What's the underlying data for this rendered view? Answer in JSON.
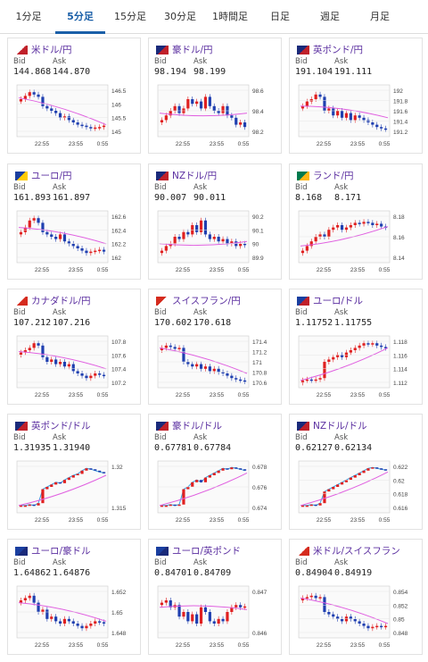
{
  "tabs": [
    {
      "label": "1分足",
      "active": false
    },
    {
      "label": "5分足",
      "active": true
    },
    {
      "label": "15分足",
      "active": false
    },
    {
      "label": "30分足",
      "active": false
    },
    {
      "label": "1時間足",
      "active": false
    },
    {
      "label": "日足",
      "active": false
    },
    {
      "label": "週足",
      "active": false
    },
    {
      "label": "月足",
      "active": false
    }
  ],
  "labels": {
    "bid": "Bid",
    "ask": "Ask"
  },
  "colors": {
    "up": "#e02020",
    "down": "#1f3fb0",
    "ma": "#e060e0",
    "tab_active": "#1a5fa8",
    "pair_text": "#5b2fa0"
  },
  "cards": [
    {
      "pair": "米ドル/円",
      "flag": [
        "#ffffff",
        "#c0202a"
      ],
      "bid": "144.868",
      "ask": "144.870",
      "chart_data": {
        "type": "candlestick",
        "x_ticks": [
          "22:55",
          "23:55",
          "0:55"
        ],
        "y_ticks": [
          "146.5",
          "146",
          "145.5",
          "145"
        ],
        "ylim": [
          144.7,
          146.7
        ],
        "shape": [
          0.75,
          0.82,
          0.9,
          0.85,
          0.8,
          0.6,
          0.55,
          0.5,
          0.45,
          0.35,
          0.38,
          0.3,
          0.25,
          0.2,
          0.18,
          0.15,
          0.12,
          0.14,
          0.15,
          0.18
        ],
        "ma": [
          0.78,
          0.2
        ]
      }
    },
    {
      "pair": "豪ドル/円",
      "flag": [
        "#1a2a7a",
        "#c0202a"
      ],
      "bid": "98.194",
      "ask": "98.199",
      "chart_data": {
        "type": "candlestick",
        "x_ticks": [
          "22:55",
          "23:55",
          "0:55"
        ],
        "y_ticks": [
          "98.6",
          "98.4",
          "98.2"
        ],
        "ylim": [
          98.15,
          98.7
        ],
        "shape": [
          0.3,
          0.4,
          0.5,
          0.6,
          0.45,
          0.55,
          0.75,
          0.65,
          0.7,
          0.55,
          0.8,
          0.6,
          0.5,
          0.45,
          0.6,
          0.4,
          0.35,
          0.2,
          0.25,
          0.15
        ],
        "ma": [
          0.45,
          0.45
        ]
      }
    },
    {
      "pair": "英ポンド/円",
      "flag": [
        "#1a2a7a",
        "#c0202a"
      ],
      "bid": "191.104",
      "ask": "191.111",
      "chart_data": {
        "type": "candlestick",
        "x_ticks": [
          "22:55",
          "23:55",
          "0:55"
        ],
        "y_ticks": [
          "192",
          "191.8",
          "191.6",
          "191.4",
          "191.2"
        ],
        "ylim": [
          191.05,
          192.1
        ],
        "shape": [
          0.6,
          0.7,
          0.75,
          0.85,
          0.8,
          0.5,
          0.55,
          0.4,
          0.5,
          0.35,
          0.45,
          0.3,
          0.4,
          0.35,
          0.3,
          0.25,
          0.2,
          0.15,
          0.12,
          0.1
        ],
        "ma": [
          0.6,
          0.35
        ]
      }
    },
    {
      "pair": "ユーロ/円",
      "flag": [
        "#1a3fa0",
        "#ffcc00"
      ],
      "bid": "161.893",
      "ask": "161.897",
      "chart_data": {
        "type": "candlestick",
        "x_ticks": [
          "22:55",
          "23:55",
          "0:55"
        ],
        "y_ticks": [
          "162.6",
          "162.4",
          "162.2",
          "162"
        ],
        "ylim": [
          161.85,
          162.7
        ],
        "shape": [
          0.6,
          0.7,
          0.85,
          0.9,
          0.8,
          0.6,
          0.55,
          0.5,
          0.45,
          0.55,
          0.4,
          0.35,
          0.3,
          0.25,
          0.2,
          0.15,
          0.18,
          0.2,
          0.22,
          0.18
        ],
        "ma": [
          0.7,
          0.35
        ]
      }
    },
    {
      "pair": "NZドル/円",
      "flag": [
        "#1a2a7a",
        "#c0202a"
      ],
      "bid": "90.007",
      "ask": "90.011",
      "chart_data": {
        "type": "candlestick",
        "x_ticks": [
          "22:55",
          "23:55",
          "0:55"
        ],
        "y_ticks": [
          "90.2",
          "90.1",
          "90",
          "89.9"
        ],
        "ylim": [
          89.85,
          90.25
        ],
        "shape": [
          0.2,
          0.3,
          0.35,
          0.5,
          0.45,
          0.6,
          0.55,
          0.75,
          0.6,
          0.85,
          0.55,
          0.45,
          0.5,
          0.4,
          0.45,
          0.35,
          0.4,
          0.3,
          0.35,
          0.32
        ],
        "ma": [
          0.35,
          0.4
        ]
      }
    },
    {
      "pair": "ランド/円",
      "flag": [
        "#007a4d",
        "#ffb612"
      ],
      "bid": "8.168",
      "ask": "8.171",
      "chart_data": {
        "type": "candlestick",
        "x_ticks": [
          "22:55",
          "23:55",
          "0:55"
        ],
        "y_ticks": [
          "8.18",
          "8.16",
          "8.14"
        ],
        "ylim": [
          8.13,
          8.19
        ],
        "shape": [
          0.2,
          0.3,
          0.4,
          0.5,
          0.55,
          0.5,
          0.65,
          0.7,
          0.75,
          0.65,
          0.7,
          0.75,
          0.8,
          0.78,
          0.82,
          0.8,
          0.75,
          0.78,
          0.72,
          0.7
        ],
        "ma": [
          0.3,
          0.72
        ]
      }
    },
    {
      "pair": "カナダドル/円",
      "flag": [
        "#ffffff",
        "#d52b1e"
      ],
      "bid": "107.212",
      "ask": "107.216",
      "chart_data": {
        "type": "candlestick",
        "x_ticks": [
          "22:55",
          "23:55",
          "0:55"
        ],
        "y_ticks": [
          "107.8",
          "107.6",
          "107.4",
          "107.2"
        ],
        "ylim": [
          107.1,
          107.9
        ],
        "shape": [
          0.7,
          0.75,
          0.8,
          0.9,
          0.85,
          0.6,
          0.5,
          0.55,
          0.45,
          0.5,
          0.4,
          0.45,
          0.3,
          0.25,
          0.2,
          0.15,
          0.2,
          0.25,
          0.22,
          0.2
        ],
        "ma": [
          0.72,
          0.35
        ]
      }
    },
    {
      "pair": "スイスフラン/円",
      "flag": [
        "#d52b1e",
        "#ffffff"
      ],
      "bid": "170.602",
      "ask": "170.618",
      "chart_data": {
        "type": "candlestick",
        "x_ticks": [
          "22:55",
          "23:55",
          "0:55"
        ],
        "y_ticks": [
          "171.4",
          "171.2",
          "171",
          "170.8",
          "170.6"
        ],
        "ylim": [
          170.55,
          171.5
        ],
        "shape": [
          0.8,
          0.85,
          0.82,
          0.78,
          0.8,
          0.5,
          0.45,
          0.4,
          0.45,
          0.35,
          0.4,
          0.3,
          0.35,
          0.28,
          0.25,
          0.2,
          0.15,
          0.12,
          0.1,
          0.08
        ],
        "ma": [
          0.8,
          0.25
        ]
      }
    },
    {
      "pair": "ユーロ/ドル",
      "flag": [
        "#1a3fa0",
        "#c0202a"
      ],
      "bid": "1.11752",
      "ask": "1.11755",
      "chart_data": {
        "type": "candlestick",
        "x_ticks": [
          "22:55",
          "23:55",
          "0:55"
        ],
        "y_ticks": [
          "1.118",
          "1.116",
          "1.114",
          "1.112"
        ],
        "ylim": [
          1.111,
          1.119
        ],
        "shape": [
          0.1,
          0.12,
          0.1,
          0.12,
          0.15,
          0.5,
          0.55,
          0.6,
          0.65,
          0.6,
          0.7,
          0.75,
          0.8,
          0.85,
          0.9,
          0.88,
          0.9,
          0.85,
          0.82,
          0.8
        ],
        "ma": [
          0.1,
          0.8
        ]
      }
    },
    {
      "pair": "英ポンド/ドル",
      "flag": [
        "#1a2a7a",
        "#c0202a"
      ],
      "bid": "1.31935",
      "ask": "1.31940",
      "chart_data": {
        "type": "line",
        "x_ticks": [
          "22:55",
          "23:55",
          "0:55"
        ],
        "y_ticks": [
          "1.32",
          "1.315"
        ],
        "ylim": [
          1.311,
          1.3215
        ],
        "shape": [
          0.1,
          0.1,
          0.12,
          0.1,
          0.15,
          0.45,
          0.5,
          0.55,
          0.6,
          0.58,
          0.65,
          0.7,
          0.75,
          0.78,
          0.85,
          0.9,
          0.88,
          0.85,
          0.82,
          0.8
        ],
        "ma": [
          0.1,
          0.75
        ]
      }
    },
    {
      "pair": "豪ドル/ドル",
      "flag": [
        "#1a2a7a",
        "#c0202a"
      ],
      "bid": "0.67781",
      "ask": "0.67784",
      "chart_data": {
        "type": "line",
        "x_ticks": [
          "22:55",
          "23:55",
          "0:55"
        ],
        "y_ticks": [
          "0.678",
          "0.676",
          "0.674"
        ],
        "ylim": [
          0.6725,
          0.679
        ],
        "shape": [
          0.1,
          0.1,
          0.12,
          0.1,
          0.12,
          0.45,
          0.5,
          0.6,
          0.65,
          0.6,
          0.7,
          0.75,
          0.8,
          0.85,
          0.9,
          0.88,
          0.92,
          0.9,
          0.88,
          0.85
        ],
        "ma": [
          0.1,
          0.8
        ]
      }
    },
    {
      "pair": "NZドル/ドル",
      "flag": [
        "#1a2a7a",
        "#c0202a"
      ],
      "bid": "0.62127",
      "ask": "0.62134",
      "chart_data": {
        "type": "line",
        "x_ticks": [
          "22:55",
          "23:55",
          "0:55"
        ],
        "y_ticks": [
          "0.622",
          "0.62",
          "0.618",
          "0.616"
        ],
        "ylim": [
          0.615,
          0.6225
        ],
        "shape": [
          0.1,
          0.1,
          0.12,
          0.1,
          0.15,
          0.4,
          0.45,
          0.5,
          0.55,
          0.6,
          0.65,
          0.7,
          0.75,
          0.8,
          0.85,
          0.9,
          0.92,
          0.9,
          0.88,
          0.86
        ],
        "ma": [
          0.1,
          0.82
        ]
      }
    },
    {
      "pair": "ユーロ/豪ドル",
      "flag": [
        "#1a3fa0",
        "#1a2a7a"
      ],
      "bid": "1.64862",
      "ask": "1.64876",
      "chart_data": {
        "type": "candlestick",
        "x_ticks": [
          "22:55",
          "23:55",
          "0:55"
        ],
        "y_ticks": [
          "1.652",
          "1.65",
          "1.648"
        ],
        "ylim": [
          1.6475,
          1.6525
        ],
        "shape": [
          0.75,
          0.8,
          0.85,
          0.7,
          0.5,
          0.55,
          0.35,
          0.4,
          0.3,
          0.25,
          0.35,
          0.3,
          0.25,
          0.2,
          0.15,
          0.2,
          0.25,
          0.3,
          0.28,
          0.25
        ],
        "ma": [
          0.7,
          0.3
        ]
      }
    },
    {
      "pair": "ユーロ/英ポンド",
      "flag": [
        "#1a3fa0",
        "#1a2a7a"
      ],
      "bid": "0.84701",
      "ask": "0.84709",
      "chart_data": {
        "type": "candlestick",
        "x_ticks": [
          "22:55",
          "23:55",
          "0:55"
        ],
        "y_ticks": [
          "0.847",
          "0.846"
        ],
        "ylim": [
          0.8455,
          0.8475
        ],
        "shape": [
          0.7,
          0.75,
          0.6,
          0.65,
          0.4,
          0.5,
          0.3,
          0.45,
          0.25,
          0.6,
          0.5,
          0.3,
          0.25,
          0.35,
          0.3,
          0.5,
          0.6,
          0.65,
          0.6,
          0.62
        ],
        "ma": [
          0.6,
          0.55
        ]
      }
    },
    {
      "pair": "米ドル/スイスフラン",
      "flag": [
        "#ffffff",
        "#d52b1e"
      ],
      "bid": "0.84904",
      "ask": "0.84919",
      "chart_data": {
        "type": "candlestick",
        "x_ticks": [
          "22:55",
          "23:55",
          "0:55"
        ],
        "y_ticks": [
          "0.854",
          "0.852",
          "0.85",
          "0.848"
        ],
        "ylim": [
          0.8475,
          0.8545
        ],
        "shape": [
          0.8,
          0.82,
          0.85,
          0.8,
          0.82,
          0.5,
          0.45,
          0.4,
          0.35,
          0.3,
          0.4,
          0.35,
          0.3,
          0.25,
          0.2,
          0.15,
          0.18,
          0.2,
          0.18,
          0.2
        ],
        "ma": [
          0.8,
          0.25
        ]
      }
    }
  ]
}
